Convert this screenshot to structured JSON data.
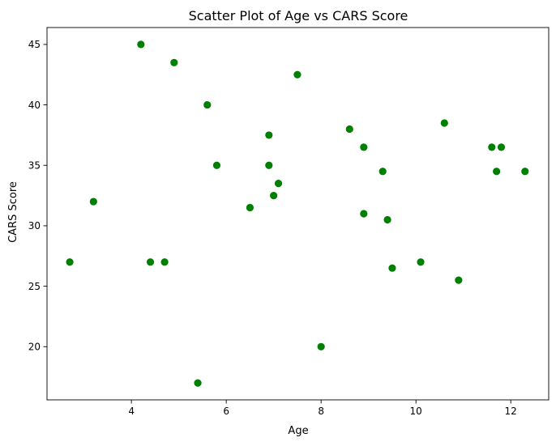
{
  "chart_data": {
    "type": "scatter",
    "title": "Scatter Plot of Age vs CARS Score",
    "xlabel": "Age",
    "ylabel": "CARS Score",
    "xlim": [
      2.22,
      12.8
    ],
    "ylim": [
      15.6,
      46.4
    ],
    "xticks": [
      4,
      6,
      8,
      10,
      12
    ],
    "yticks": [
      20,
      25,
      30,
      35,
      40,
      45
    ],
    "grid": false,
    "legend": "none",
    "marker_color": "#008000",
    "series": [
      {
        "x": [
          4.2,
          4.9,
          7.5,
          5.6,
          10.6,
          6.9,
          8.6,
          8.9,
          11.6,
          11.8,
          5.8,
          6.9,
          9.3,
          11.7,
          12.3,
          7.1,
          3.2,
          7.0,
          6.5,
          8.9,
          9.4,
          2.7,
          4.4,
          4.7,
          10.1,
          9.5,
          10.9,
          8.0,
          5.4
        ],
        "y": [
          45,
          43.5,
          42.5,
          40,
          38.5,
          37.5,
          38,
          36.5,
          36.5,
          36.5,
          35,
          35,
          34.5,
          34.5,
          34.5,
          33.5,
          32,
          32.5,
          31.5,
          31,
          30.5,
          27,
          27,
          27,
          27,
          26.5,
          25.5,
          20,
          17
        ]
      }
    ]
  }
}
